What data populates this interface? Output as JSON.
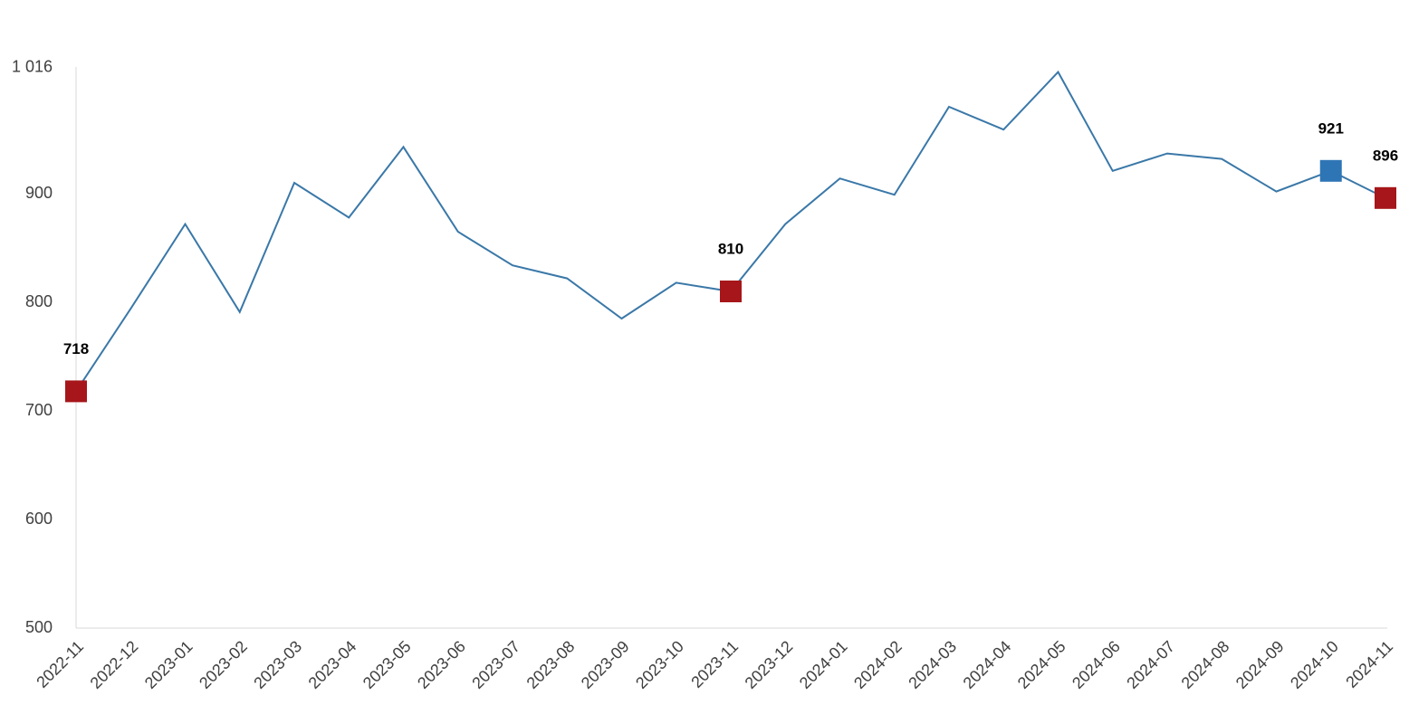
{
  "chart_data": {
    "type": "line",
    "categories": [
      "2022-11",
      "2022-12",
      "2023-01",
      "2023-02",
      "2023-03",
      "2023-04",
      "2023-05",
      "2023-06",
      "2023-07",
      "2023-08",
      "2023-09",
      "2023-10",
      "2023-11",
      "2023-12",
      "2024-01",
      "2024-02",
      "2024-03",
      "2024-04",
      "2024-05",
      "2024-06",
      "2024-07",
      "2024-08",
      "2024-09",
      "2024-10",
      "2024-11"
    ],
    "series": [
      {
        "color": "#3a78a8",
        "values": [
          718,
          794,
          872,
          791,
          910,
          878,
          943,
          865,
          834,
          822,
          785,
          818,
          810,
          872,
          914,
          899,
          980,
          959,
          1012,
          921,
          937,
          932,
          902,
          921,
          896
        ],
        "marker_colors": [
          "#a6161a",
          null,
          null,
          null,
          null,
          null,
          null,
          null,
          null,
          null,
          null,
          null,
          "#a6161a",
          null,
          null,
          null,
          null,
          null,
          null,
          null,
          null,
          null,
          null,
          "#2e75b6",
          "#a6161a"
        ]
      }
    ],
    "ylim": [
      500,
      1016
    ],
    "yticks": [
      500,
      600,
      700,
      800,
      900,
      {
        "value": 1016,
        "label": "1 016"
      }
    ],
    "grid": false
  }
}
